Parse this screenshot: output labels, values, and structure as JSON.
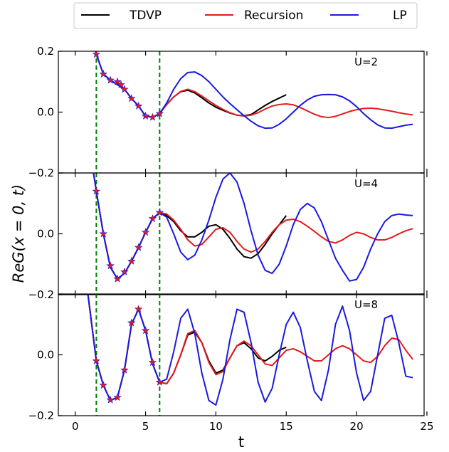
{
  "chart_data": {
    "type": "line",
    "xlabel": "t",
    "ylabel": "ReG(x = 0, t)",
    "xlim": [
      -1.2,
      24.8
    ],
    "xticks": [
      0,
      5,
      10,
      15,
      20,
      25
    ],
    "xtick_labels": [
      "0",
      "5",
      "10",
      "15",
      "20",
      "25"
    ],
    "ylim": [
      -0.2,
      0.2
    ],
    "yticks": [
      -0.2,
      0.0,
      0.2
    ],
    "ytick_labels": [
      "−0.2",
      "0.0",
      "0.2"
    ],
    "vlines": [
      1.5,
      6.0
    ],
    "vline_color": "#008000",
    "legend": {
      "placement": "top-center",
      "entries": [
        {
          "label": "TDVP",
          "color": "#000000"
        },
        {
          "label": "Recursion",
          "color": "#e41a1c"
        },
        {
          "label": "LP",
          "color": "#1a1adf"
        }
      ]
    },
    "marker": {
      "name": "star",
      "color": "#e41a1c",
      "outline": "#1a1adf"
    },
    "panels": [
      {
        "annotation": "U=2",
        "tick_labels_y": [
          "−0.2",
          "0.0",
          "0.2"
        ],
        "series": [
          {
            "name": "TDVP",
            "x": [
              1.0,
              1.5,
              2.0,
              2.5,
              3.0,
              3.5,
              4.0,
              4.5,
              5.0,
              5.5,
              6.0,
              6.5,
              7.0,
              7.5,
              8.0,
              8.5,
              9.0,
              9.5,
              10.0,
              10.5,
              11.0,
              11.5,
              12.0,
              12.5,
              13.0,
              13.5,
              14.0,
              14.5,
              15.0
            ],
            "y": [
              0.3,
              0.19,
              0.125,
              0.105,
              0.09,
              0.075,
              0.045,
              0.02,
              -0.013,
              -0.017,
              -0.005,
              0.025,
              0.05,
              0.067,
              0.072,
              0.063,
              0.047,
              0.03,
              0.016,
              0.006,
              -0.003,
              -0.01,
              -0.012,
              -0.008,
              0.007,
              0.022,
              0.035,
              0.046,
              0.057
            ]
          },
          {
            "name": "Recursion",
            "x": [
              1.0,
              1.5,
              2.0,
              2.5,
              3.0,
              3.5,
              4.0,
              4.5,
              5.0,
              5.5,
              6.0,
              6.5,
              7.0,
              7.5,
              8.0,
              8.5,
              9.0,
              9.5,
              10.0,
              10.5,
              11.0,
              11.5,
              12.0,
              12.5,
              13.0,
              13.5,
              14.0,
              14.5,
              15.0,
              15.5,
              16.0,
              16.5,
              17.0,
              17.5,
              18.0,
              18.5,
              19.0,
              19.5,
              20.0,
              20.5,
              21.0,
              21.5,
              22.0,
              22.5,
              23.0,
              23.5,
              24.0
            ],
            "y": [
              0.3,
              0.19,
              0.125,
              0.105,
              0.09,
              0.075,
              0.045,
              0.02,
              -0.013,
              -0.017,
              -0.005,
              0.025,
              0.05,
              0.068,
              0.075,
              0.067,
              0.053,
              0.037,
              0.022,
              0.009,
              -0.002,
              -0.01,
              -0.013,
              -0.01,
              -0.002,
              0.01,
              0.02,
              0.025,
              0.027,
              0.024,
              0.015,
              0.004,
              -0.007,
              -0.015,
              -0.018,
              -0.014,
              -0.006,
              0.002,
              0.008,
              0.012,
              0.013,
              0.011,
              0.007,
              0.003,
              -0.002,
              -0.006,
              -0.009
            ]
          },
          {
            "name": "LP",
            "x": [
              1.0,
              1.5,
              2.0,
              2.5,
              3.0,
              3.5,
              4.0,
              4.5,
              5.0,
              5.5,
              6.0,
              6.5,
              7.0,
              7.5,
              8.0,
              8.5,
              9.0,
              9.5,
              10.0,
              10.5,
              11.0,
              11.5,
              12.0,
              12.5,
              13.0,
              13.5,
              14.0,
              14.5,
              15.0,
              15.5,
              16.0,
              16.5,
              17.0,
              17.5,
              18.0,
              18.5,
              19.0,
              19.5,
              20.0,
              20.5,
              21.0,
              21.5,
              22.0,
              22.5,
              23.0,
              23.5,
              24.0
            ],
            "y": [
              0.3,
              0.19,
              0.125,
              0.105,
              0.09,
              0.075,
              0.045,
              0.02,
              -0.013,
              -0.017,
              -0.005,
              0.03,
              0.075,
              0.11,
              0.13,
              0.132,
              0.12,
              0.1,
              0.075,
              0.05,
              0.028,
              0.008,
              -0.012,
              -0.03,
              -0.045,
              -0.053,
              -0.052,
              -0.04,
              -0.022,
              0.0,
              0.022,
              0.04,
              0.052,
              0.057,
              0.058,
              0.057,
              0.05,
              0.037,
              0.018,
              -0.005,
              -0.025,
              -0.042,
              -0.052,
              -0.053,
              -0.048,
              -0.043,
              -0.04
            ]
          },
          {
            "name": "markers",
            "x": [
              1.5,
              2.0,
              2.5,
              3.0,
              3.25,
              3.5,
              4.0,
              4.5,
              5.0,
              5.5,
              6.0
            ],
            "y": [
              0.19,
              0.125,
              0.105,
              0.1,
              0.09,
              0.075,
              0.045,
              0.02,
              -0.013,
              -0.017,
              -0.005
            ]
          }
        ]
      },
      {
        "annotation": "U=4",
        "tick_labels_y": [
          "−0.2",
          "0.0",
          ""
        ],
        "series": [
          {
            "name": "TDVP",
            "x": [
              1.3,
              1.5,
              2.0,
              2.5,
              3.0,
              3.5,
              4.0,
              4.5,
              5.0,
              5.5,
              6.0,
              6.5,
              7.0,
              7.5,
              8.0,
              8.5,
              9.0,
              9.5,
              10.0,
              10.5,
              11.0,
              11.5,
              12.0,
              12.5,
              13.0,
              13.5,
              14.0,
              14.5,
              15.0
            ],
            "y": [
              0.2,
              0.14,
              0.0,
              -0.11,
              -0.148,
              -0.13,
              -0.09,
              -0.045,
              0.005,
              0.05,
              0.07,
              0.06,
              0.04,
              0.01,
              -0.01,
              -0.01,
              0.005,
              0.025,
              0.03,
              0.015,
              -0.015,
              -0.05,
              -0.075,
              -0.08,
              -0.065,
              -0.035,
              0.0,
              0.03,
              0.06
            ]
          },
          {
            "name": "Recursion",
            "x": [
              1.3,
              1.5,
              2.0,
              2.5,
              3.0,
              3.5,
              4.0,
              4.5,
              5.0,
              5.5,
              6.0,
              6.5,
              7.0,
              7.5,
              8.0,
              8.5,
              9.0,
              9.5,
              10.0,
              10.5,
              11.0,
              11.5,
              12.0,
              12.5,
              13.0,
              13.5,
              14.0,
              14.5,
              15.0,
              15.5,
              16.0,
              16.5,
              17.0,
              17.5,
              18.0,
              18.5,
              19.0,
              19.5,
              20.0,
              20.5,
              21.0,
              21.5,
              22.0,
              22.5,
              23.0,
              23.5,
              24.0
            ],
            "y": [
              0.2,
              0.14,
              0.0,
              -0.11,
              -0.148,
              -0.13,
              -0.09,
              -0.045,
              0.005,
              0.05,
              0.07,
              0.065,
              0.045,
              0.015,
              -0.02,
              -0.04,
              -0.035,
              -0.01,
              0.015,
              0.02,
              0.005,
              -0.025,
              -0.05,
              -0.06,
              -0.05,
              -0.025,
              0.005,
              0.03,
              0.045,
              0.048,
              0.04,
              0.025,
              0.008,
              -0.01,
              -0.025,
              -0.03,
              -0.02,
              -0.005,
              0.005,
              0.0,
              -0.012,
              -0.02,
              -0.02,
              -0.012,
              0.0,
              0.01,
              0.017
            ]
          },
          {
            "name": "LP",
            "x": [
              1.3,
              1.5,
              2.0,
              2.5,
              3.0,
              3.5,
              4.0,
              4.5,
              5.0,
              5.5,
              6.0,
              6.5,
              7.0,
              7.5,
              8.0,
              8.5,
              9.0,
              9.5,
              10.0,
              10.5,
              11.0,
              11.5,
              12.0,
              12.5,
              13.0,
              13.5,
              14.0,
              14.5,
              15.0,
              15.5,
              16.0,
              16.5,
              17.0,
              17.5,
              18.0,
              18.5,
              19.0,
              19.5,
              20.0,
              20.5,
              21.0,
              21.5,
              22.0,
              22.5,
              23.0,
              23.5,
              24.0
            ],
            "y": [
              0.2,
              0.14,
              0.0,
              -0.11,
              -0.148,
              -0.13,
              -0.09,
              -0.045,
              0.005,
              0.05,
              0.07,
              0.055,
              0.0,
              -0.06,
              -0.085,
              -0.07,
              -0.02,
              0.045,
              0.12,
              0.18,
              0.2,
              0.17,
              0.1,
              0.01,
              -0.07,
              -0.12,
              -0.13,
              -0.1,
              -0.04,
              0.03,
              0.08,
              0.1,
              0.085,
              0.04,
              -0.02,
              -0.08,
              -0.12,
              -0.155,
              -0.15,
              -0.11,
              -0.05,
              0.0,
              0.04,
              0.06,
              0.065,
              0.062,
              0.06
            ]
          },
          {
            "name": "markers",
            "x": [
              1.5,
              2.0,
              2.5,
              3.0,
              3.5,
              4.0,
              4.5,
              5.0,
              5.5,
              6.0
            ],
            "y": [
              0.14,
              0.0,
              -0.105,
              -0.148,
              -0.125,
              -0.09,
              -0.045,
              0.005,
              0.05,
              0.07
            ]
          }
        ]
      },
      {
        "annotation": "U=8",
        "tick_labels_y": [
          "−0.2",
          "0.0",
          ""
        ],
        "series": [
          {
            "name": "TDVP",
            "x": [
              0.9,
              1.5,
              2.0,
              2.5,
              3.0,
              3.5,
              4.0,
              4.5,
              5.0,
              5.5,
              6.0,
              6.5,
              7.0,
              7.5,
              8.0,
              8.5,
              9.0,
              9.5,
              10.0,
              10.5,
              11.0,
              11.5,
              12.0,
              12.5,
              13.0,
              13.5,
              14.0,
              14.5,
              15.0
            ],
            "y": [
              0.2,
              -0.02,
              -0.1,
              -0.15,
              -0.14,
              -0.05,
              0.1,
              0.15,
              0.08,
              -0.03,
              -0.09,
              -0.095,
              -0.06,
              0.0,
              0.065,
              0.075,
              0.04,
              -0.02,
              -0.06,
              -0.05,
              -0.01,
              0.03,
              0.04,
              0.02,
              -0.01,
              -0.02,
              -0.005,
              0.015,
              0.025
            ]
          },
          {
            "name": "Recursion",
            "x": [
              0.9,
              1.5,
              2.0,
              2.5,
              3.0,
              3.5,
              4.0,
              4.5,
              5.0,
              5.5,
              6.0,
              6.5,
              7.0,
              7.5,
              8.0,
              8.5,
              9.0,
              9.5,
              10.0,
              10.5,
              11.0,
              11.5,
              12.0,
              12.5,
              13.0,
              13.5,
              14.0,
              14.5,
              15.0,
              15.5,
              16.0,
              16.5,
              17.0,
              17.5,
              18.0,
              18.5,
              19.0,
              19.5,
              20.0,
              20.5,
              21.0,
              21.5,
              22.0,
              22.5,
              23.0,
              23.5,
              24.0
            ],
            "y": [
              0.2,
              -0.02,
              -0.1,
              -0.15,
              -0.14,
              -0.05,
              0.1,
              0.15,
              0.08,
              -0.03,
              -0.09,
              -0.095,
              -0.06,
              0.0,
              0.07,
              0.08,
              0.04,
              -0.025,
              -0.065,
              -0.055,
              -0.01,
              0.03,
              0.045,
              0.03,
              0.0,
              -0.03,
              -0.035,
              -0.01,
              0.015,
              0.02,
              0.01,
              -0.005,
              -0.02,
              -0.02,
              0.0,
              0.02,
              0.03,
              0.02,
              0.0,
              -0.02,
              -0.025,
              -0.005,
              0.03,
              0.055,
              0.05,
              0.015,
              -0.015
            ]
          },
          {
            "name": "LP",
            "x": [
              0.9,
              1.5,
              2.0,
              2.5,
              3.0,
              3.5,
              4.0,
              4.5,
              5.0,
              5.5,
              6.0,
              6.5,
              7.0,
              7.5,
              8.0,
              8.5,
              9.0,
              9.5,
              10.0,
              10.5,
              11.0,
              11.5,
              12.0,
              12.5,
              13.0,
              13.5,
              14.0,
              14.5,
              15.0,
              15.5,
              16.0,
              16.5,
              17.0,
              17.5,
              18.0,
              18.5,
              19.0,
              19.5,
              20.0,
              20.5,
              21.0,
              21.5,
              22.0,
              22.5,
              23.0,
              23.5,
              24.0
            ],
            "y": [
              0.2,
              -0.02,
              -0.1,
              -0.15,
              -0.14,
              -0.05,
              0.1,
              0.15,
              0.08,
              -0.03,
              -0.09,
              -0.08,
              0.01,
              0.12,
              0.15,
              0.07,
              -0.06,
              -0.15,
              -0.165,
              -0.08,
              0.05,
              0.15,
              0.14,
              0.04,
              -0.09,
              -0.155,
              -0.11,
              0.0,
              0.1,
              0.14,
              0.09,
              -0.02,
              -0.12,
              -0.15,
              -0.05,
              0.1,
              0.16,
              0.08,
              -0.06,
              -0.15,
              -0.12,
              0.0,
              0.12,
              0.13,
              0.04,
              -0.07,
              -0.075
            ]
          },
          {
            "name": "markers",
            "x": [
              1.5,
              2.0,
              2.5,
              3.0,
              3.5,
              4.0,
              4.5,
              5.0,
              5.5,
              6.0
            ],
            "y": [
              -0.02,
              -0.1,
              -0.148,
              -0.14,
              -0.05,
              0.105,
              0.15,
              0.08,
              -0.025,
              -0.09
            ]
          }
        ]
      }
    ]
  }
}
